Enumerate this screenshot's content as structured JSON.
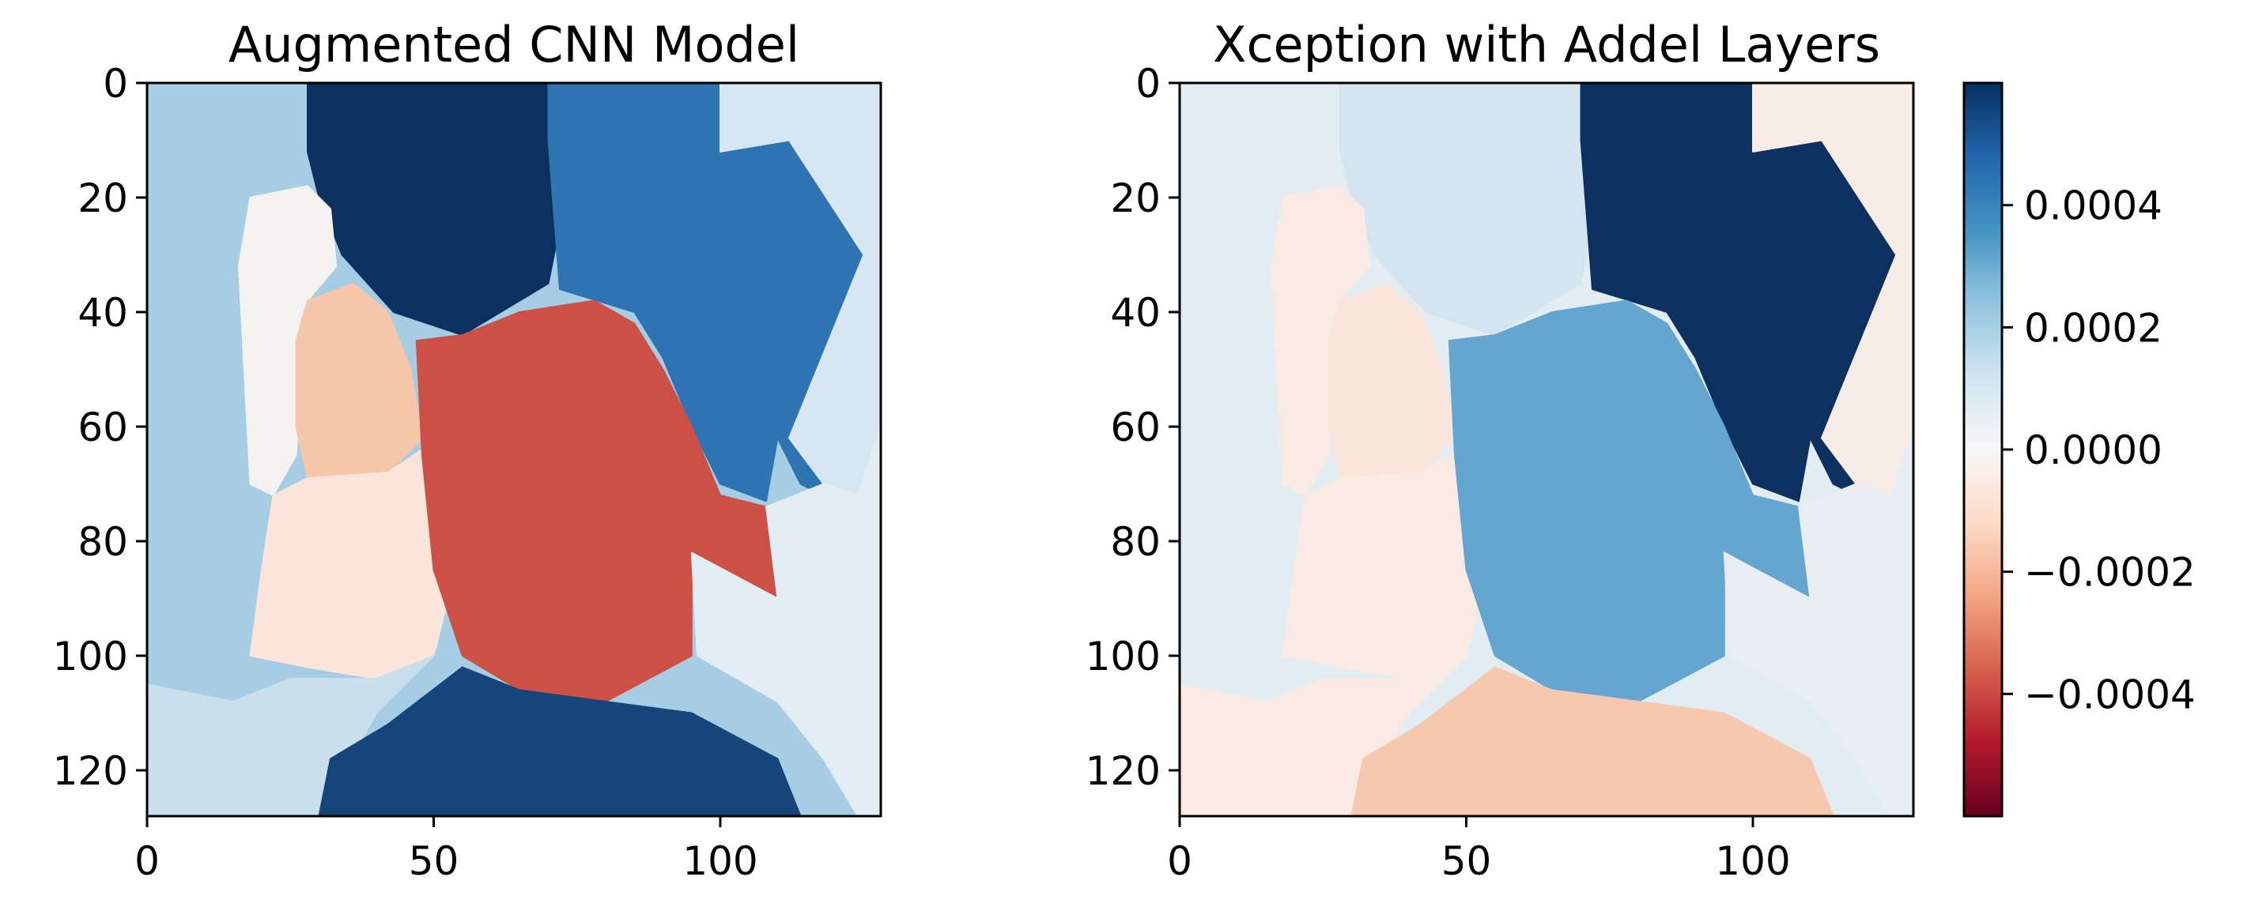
{
  "chart_data": [
    {
      "type": "heatmap",
      "title": "Augmented CNN Model",
      "xlabel": "",
      "ylabel": "",
      "xlim": [
        0,
        128
      ],
      "ylim": [
        128,
        0
      ],
      "xticks": [
        "0",
        "50",
        "100"
      ],
      "yticks": [
        "0",
        "20",
        "40",
        "60",
        "80",
        "100",
        "120"
      ],
      "regions": [
        {
          "value": 0.00022,
          "color": "#a6cde3",
          "polygon": [
            [
              0,
              0
            ],
            [
              28,
              0
            ],
            [
              28,
              18
            ],
            [
              18,
              20
            ],
            [
              15,
              32
            ],
            [
              17,
              55
            ],
            [
              18,
              72
            ],
            [
              22,
              85
            ],
            [
              20,
              105
            ],
            [
              15,
              108
            ],
            [
              0,
              105
            ]
          ]
        },
        {
          "value": 0.00058,
          "color": "#0c3160",
          "polygon": [
            [
              28,
              0
            ],
            [
              75,
              0
            ],
            [
              75,
              10
            ],
            [
              70,
              35
            ],
            [
              55,
              44
            ],
            [
              43,
              40
            ],
            [
              34,
              30
            ],
            [
              30,
              20
            ],
            [
              28,
              12
            ]
          ]
        },
        {
          "value": -5e-05,
          "color": "#f4f3f2",
          "polygon": [
            [
              28,
              18
            ],
            [
              32,
              22
            ],
            [
              33,
              32
            ],
            [
              28,
              38
            ],
            [
              26,
              65
            ],
            [
              22,
              72
            ],
            [
              18,
              70
            ],
            [
              16,
              32
            ],
            [
              18,
              20
            ]
          ]
        },
        {
          "value": -0.00013,
          "color": "#f6c6ab",
          "polygon": [
            [
              28,
              38
            ],
            [
              36,
              35
            ],
            [
              42,
              40
            ],
            [
              46,
              50
            ],
            [
              48,
              62
            ],
            [
              42,
              68
            ],
            [
              28,
              69
            ],
            [
              26,
              60
            ],
            [
              26,
              45
            ]
          ]
        },
        {
          "value": -5e-05,
          "color": "#fbe5da",
          "polygon": [
            [
              22,
              72
            ],
            [
              28,
              69
            ],
            [
              42,
              68
            ],
            [
              48,
              64
            ],
            [
              50,
              78
            ],
            [
              52,
              92
            ],
            [
              50,
              100
            ],
            [
              40,
              104
            ],
            [
              28,
              102
            ],
            [
              18,
              100
            ],
            [
              20,
              85
            ]
          ]
        },
        {
          "value": 0.00043,
          "color": "#2e73b2",
          "polygon": [
            [
              70,
              0
            ],
            [
              100,
              0
            ],
            [
              100,
              12
            ],
            [
              112,
              10
            ],
            [
              125,
              30
            ],
            [
              126,
              50
            ],
            [
              122,
              74
            ],
            [
              114,
              70
            ],
            [
              110,
              62
            ],
            [
              108,
              73
            ],
            [
              100,
              70
            ],
            [
              95,
              60
            ],
            [
              90,
              48
            ],
            [
              85,
              40
            ],
            [
              72,
              36
            ],
            [
              70,
              10
            ]
          ]
        },
        {
          "value": -0.00048,
          "color": "#cd5046",
          "polygon": [
            [
              47,
              45
            ],
            [
              55,
              44
            ],
            [
              65,
              40
            ],
            [
              78,
              38
            ],
            [
              85,
              42
            ],
            [
              90,
              50
            ],
            [
              95,
              60
            ],
            [
              100,
              72
            ],
            [
              108,
              74
            ],
            [
              110,
              90
            ],
            [
              95,
              82
            ],
            [
              95,
              100
            ],
            [
              80,
              108
            ],
            [
              65,
              106
            ],
            [
              55,
              100
            ],
            [
              50,
              85
            ],
            [
              48,
              65
            ]
          ]
        },
        {
          "value": 9e-05,
          "color": "#d7e6f0",
          "polygon": [
            [
              100,
              0
            ],
            [
              128,
              0
            ],
            [
              128,
              60
            ],
            [
              124,
              72
            ],
            [
              118,
              70
            ],
            [
              112,
              62
            ],
            [
              125,
              30
            ],
            [
              112,
              10
            ],
            [
              100,
              12
            ]
          ]
        },
        {
          "value": 3e-05,
          "color": "#e3edf4",
          "polygon": [
            [
              108,
              74
            ],
            [
              118,
              70
            ],
            [
              124,
              72
            ],
            [
              128,
              60
            ],
            [
              128,
              128
            ],
            [
              124,
              128
            ],
            [
              118,
              118
            ],
            [
              110,
              108
            ],
            [
              96,
              100
            ],
            [
              95,
              82
            ],
            [
              110,
              90
            ]
          ]
        },
        {
          "value": 9e-05,
          "color": "#c9dfec",
          "polygon": [
            [
              0,
              105
            ],
            [
              15,
              108
            ],
            [
              25,
              104
            ],
            [
              40,
              104
            ],
            [
              50,
              100
            ],
            [
              40,
              110
            ],
            [
              30,
              128
            ],
            [
              0,
              128
            ]
          ]
        },
        {
          "value": 0.00052,
          "color": "#15457b",
          "polygon": [
            [
              30,
              128
            ],
            [
              32,
              118
            ],
            [
              42,
              112
            ],
            [
              55,
              102
            ],
            [
              65,
              106
            ],
            [
              80,
              108
            ],
            [
              95,
              110
            ],
            [
              110,
              118
            ],
            [
              114,
              128
            ]
          ]
        }
      ]
    },
    {
      "type": "heatmap",
      "title": "Xception with Addel Layers",
      "xlabel": "",
      "ylabel": "",
      "xlim": [
        0,
        128
      ],
      "ylim": [
        128,
        0
      ],
      "xticks": [
        "0",
        "50",
        "100"
      ],
      "yticks": [
        "0",
        "20",
        "40",
        "60",
        "80",
        "100",
        "120"
      ],
      "regions": [
        {
          "value": 6e-05,
          "color": "#e1ecf3",
          "polygon": [
            [
              0,
              0
            ],
            [
              28,
              0
            ],
            [
              28,
              18
            ],
            [
              18,
              20
            ],
            [
              15,
              32
            ],
            [
              17,
              55
            ],
            [
              18,
              72
            ],
            [
              22,
              85
            ],
            [
              20,
              105
            ],
            [
              15,
              108
            ],
            [
              0,
              105
            ]
          ]
        },
        {
          "value": 9e-05,
          "color": "#d5e5ef",
          "polygon": [
            [
              28,
              0
            ],
            [
              75,
              0
            ],
            [
              75,
              10
            ],
            [
              70,
              35
            ],
            [
              55,
              44
            ],
            [
              43,
              40
            ],
            [
              34,
              30
            ],
            [
              30,
              20
            ],
            [
              28,
              12
            ]
          ]
        },
        {
          "value": -3e-05,
          "color": "#f9ebe3",
          "polygon": [
            [
              28,
              18
            ],
            [
              32,
              22
            ],
            [
              33,
              32
            ],
            [
              28,
              38
            ],
            [
              26,
              65
            ],
            [
              22,
              72
            ],
            [
              18,
              70
            ],
            [
              16,
              32
            ],
            [
              18,
              20
            ]
          ]
        },
        {
          "value": -4e-05,
          "color": "#f9e5dc",
          "polygon": [
            [
              28,
              38
            ],
            [
              36,
              35
            ],
            [
              42,
              40
            ],
            [
              46,
              50
            ],
            [
              48,
              62
            ],
            [
              42,
              68
            ],
            [
              28,
              69
            ],
            [
              26,
              60
            ],
            [
              26,
              45
            ]
          ]
        },
        {
          "value": -3e-05,
          "color": "#f9ebe3",
          "polygon": [
            [
              22,
              72
            ],
            [
              28,
              69
            ],
            [
              42,
              68
            ],
            [
              48,
              64
            ],
            [
              50,
              78
            ],
            [
              52,
              92
            ],
            [
              50,
              100
            ],
            [
              40,
              104
            ],
            [
              28,
              102
            ],
            [
              18,
              100
            ],
            [
              20,
              85
            ]
          ]
        },
        {
          "value": 0.00058,
          "color": "#0c3160",
          "polygon": [
            [
              70,
              0
            ],
            [
              100,
              0
            ],
            [
              100,
              12
            ],
            [
              112,
              10
            ],
            [
              125,
              30
            ],
            [
              126,
              50
            ],
            [
              122,
              74
            ],
            [
              114,
              70
            ],
            [
              110,
              62
            ],
            [
              108,
              73
            ],
            [
              100,
              70
            ],
            [
              95,
              60
            ],
            [
              90,
              48
            ],
            [
              85,
              40
            ],
            [
              72,
              36
            ],
            [
              70,
              10
            ]
          ]
        },
        {
          "value": 0.00031,
          "color": "#64a6cf",
          "polygon": [
            [
              47,
              45
            ],
            [
              55,
              44
            ],
            [
              65,
              40
            ],
            [
              78,
              38
            ],
            [
              85,
              42
            ],
            [
              90,
              50
            ],
            [
              95,
              60
            ],
            [
              100,
              72
            ],
            [
              108,
              74
            ],
            [
              110,
              90
            ],
            [
              95,
              82
            ],
            [
              95,
              100
            ],
            [
              80,
              108
            ],
            [
              65,
              106
            ],
            [
              55,
              100
            ],
            [
              50,
              85
            ],
            [
              48,
              65
            ]
          ]
        },
        {
          "value": -2e-05,
          "color": "#f8ece6",
          "polygon": [
            [
              100,
              0
            ],
            [
              128,
              0
            ],
            [
              128,
              60
            ],
            [
              124,
              72
            ],
            [
              118,
              70
            ],
            [
              112,
              62
            ],
            [
              125,
              30
            ],
            [
              112,
              10
            ],
            [
              100,
              12
            ]
          ]
        },
        {
          "value": 2e-05,
          "color": "#e8eef3",
          "polygon": [
            [
              108,
              74
            ],
            [
              118,
              70
            ],
            [
              124,
              72
            ],
            [
              128,
              60
            ],
            [
              128,
              128
            ],
            [
              124,
              128
            ],
            [
              118,
              118
            ],
            [
              110,
              108
            ],
            [
              96,
              100
            ],
            [
              95,
              82
            ],
            [
              110,
              90
            ]
          ]
        },
        {
          "value": -3e-05,
          "color": "#f9ebe3",
          "polygon": [
            [
              0,
              105
            ],
            [
              15,
              108
            ],
            [
              25,
              104
            ],
            [
              40,
              104
            ],
            [
              50,
              100
            ],
            [
              40,
              110
            ],
            [
              30,
              128
            ],
            [
              0,
              128
            ]
          ]
        },
        {
          "value": -0.00013,
          "color": "#f6c9ae",
          "polygon": [
            [
              30,
              128
            ],
            [
              32,
              118
            ],
            [
              42,
              112
            ],
            [
              55,
              102
            ],
            [
              65,
              106
            ],
            [
              80,
              108
            ],
            [
              95,
              110
            ],
            [
              110,
              118
            ],
            [
              114,
              128
            ]
          ]
        }
      ]
    }
  ],
  "colorbar": {
    "colormap": "RdBu",
    "vmin": -0.0006,
    "vmax": 0.0006,
    "ticks": [
      {
        "value": 0.0004,
        "label": "0.0004"
      },
      {
        "value": 0.0002,
        "label": "0.0002"
      },
      {
        "value": 0.0,
        "label": "0.0000"
      },
      {
        "value": -0.0002,
        "label": "−0.0002"
      },
      {
        "value": -0.0004,
        "label": "−0.0004"
      }
    ],
    "colors": [
      "#67001f",
      "#b2182b",
      "#d6604d",
      "#f4a582",
      "#fddbc7",
      "#f7f7f7",
      "#d1e5f0",
      "#92c5de",
      "#4393c3",
      "#2166ac",
      "#053061"
    ]
  }
}
